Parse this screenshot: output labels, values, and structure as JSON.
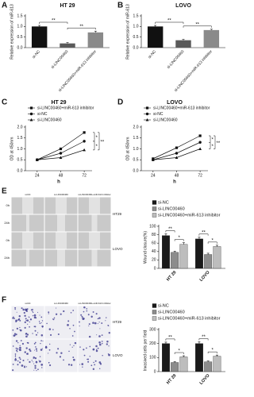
{
  "chart_data": [
    {
      "type": "bar",
      "panel": "A",
      "title": "HT 29",
      "y_label": "Relative expression of miR-613",
      "categories": [
        "si-NC",
        "si-LINC00460",
        "si-LINC00460+miR-613 inhibitor"
      ],
      "values": [
        1.0,
        0.2,
        0.72
      ],
      "errors": [
        0.05,
        0.04,
        0.06
      ],
      "colors": [
        "#111111",
        "#5a5a5a",
        "#8a8a8a"
      ],
      "ylim": [
        0,
        1.5
      ],
      "yticks": [
        {
          "value": 0,
          "label": "0.0"
        },
        0.5,
        {
          "value": 1,
          "label": "1.0"
        },
        1.5
      ],
      "annotations": [
        "**",
        "**"
      ]
    },
    {
      "type": "bar",
      "panel": "B",
      "title": "LOVO",
      "y_label": "Relative expression of miR-613",
      "categories": [
        "si-NC",
        "si-LINC00460",
        "si-LINC00460+miR-613 inhibitor"
      ],
      "values": [
        1.0,
        0.35,
        0.83
      ],
      "errors": [
        0.05,
        0.04,
        0.04
      ],
      "colors": [
        "#111111",
        "#5a5a5a",
        "#8a8a8a"
      ],
      "ylim": [
        0,
        1.5
      ],
      "yticks": [
        {
          "value": 0,
          "label": "0.0"
        },
        0.5,
        {
          "value": 1,
          "label": "1.0"
        },
        1.5
      ],
      "annotations": [
        "**",
        "**"
      ]
    },
    {
      "type": "line",
      "panel": "C",
      "title": "HT 29",
      "x_label": "h",
      "y_label": "OD at 450nm",
      "x": [
        24,
        48,
        72
      ],
      "xlim": [
        12,
        80
      ],
      "xticks": [
        24,
        48,
        72
      ],
      "ylim": [
        0,
        2
      ],
      "yticks": [
        {
          "value": 0,
          "label": "0.0"
        },
        0.5,
        {
          "value": 1,
          "label": "1.0"
        },
        1.5,
        {
          "value": 2,
          "label": "2.0"
        }
      ],
      "series": [
        {
          "name": "si-LINC00460+miR-613 inhibitor",
          "color": "#111111",
          "marker": "square",
          "values": [
            0.5,
            1.0,
            1.75
          ]
        },
        {
          "name": "si-NC",
          "color": "#111111",
          "marker": "circle",
          "values": [
            0.5,
            0.8,
            1.35
          ]
        },
        {
          "name": "si-LINC00460",
          "color": "#111111",
          "marker": "triangle",
          "values": [
            0.5,
            0.6,
            0.95
          ]
        }
      ],
      "annotations": [
        "*",
        "*",
        "**"
      ]
    },
    {
      "type": "line",
      "panel": "D",
      "title": "LOVO",
      "x_label": "h",
      "y_label": "OD at 450nm",
      "x": [
        24,
        48,
        72
      ],
      "xlim": [
        12,
        80
      ],
      "xticks": [
        24,
        48,
        72
      ],
      "ylim": [
        0,
        2
      ],
      "yticks": [
        {
          "value": 0,
          "label": "0.0"
        },
        0.5,
        {
          "value": 1,
          "label": "1.0"
        },
        1.5,
        {
          "value": 2,
          "label": "2.0"
        }
      ],
      "series": [
        {
          "name": "si-LINC00460+miR-613 inhibitor",
          "color": "#111111",
          "marker": "square",
          "values": [
            0.55,
            1.05,
            1.6
          ]
        },
        {
          "name": "si-NC",
          "color": "#111111",
          "marker": "circle",
          "values": [
            0.5,
            0.8,
            1.3
          ]
        },
        {
          "name": "si-LINC00460",
          "color": "#111111",
          "marker": "triangle",
          "values": [
            0.5,
            0.6,
            1.0
          ]
        }
      ],
      "annotations": [
        "*",
        "*",
        "**"
      ]
    },
    {
      "type": "grouped_bar",
      "panel": "E",
      "y_label": "Wound closure(%)",
      "categories": [
        "HT 29",
        "LOVO"
      ],
      "ylim": [
        0,
        100
      ],
      "yticks": [
        0,
        20,
        40,
        60,
        80,
        100
      ],
      "series": [
        {
          "name": "si-NC",
          "color": "#1a1a1a",
          "values": [
            78,
            70
          ],
          "errors": [
            4,
            4
          ]
        },
        {
          "name": "si-LINC00460",
          "color": "#8c8c8c",
          "values": [
            38,
            33
          ],
          "errors": [
            3,
            3
          ]
        },
        {
          "name": "si-LINC00460+miR-613 inhibitor",
          "color": "#bdbdbd",
          "values": [
            57,
            52
          ],
          "errors": [
            4,
            3
          ]
        }
      ],
      "annotations": [
        "**",
        "*",
        "**",
        "*"
      ],
      "images": {
        "columns": [
          "si-NC",
          "si-LINC00460",
          "si-LINC00460+miR-613 inhibitor"
        ],
        "rows": [
          "0h",
          "24h",
          "0h",
          "24h"
        ],
        "cell_lines": [
          "HT29",
          "LOVO"
        ]
      }
    },
    {
      "type": "grouped_bar",
      "panel": "F",
      "y_label": "Invasived cells per field",
      "categories": [
        "HT 29",
        "LOVO"
      ],
      "ylim": [
        0,
        300
      ],
      "yticks": [
        0,
        100,
        200,
        300
      ],
      "series": [
        {
          "name": "si-NC",
          "color": "#1a1a1a",
          "values": [
            200,
            200
          ],
          "errors": [
            10,
            12
          ]
        },
        {
          "name": "si-LINC00460",
          "color": "#8c8c8c",
          "values": [
            65,
            70
          ],
          "errors": [
            6,
            6
          ]
        },
        {
          "name": "si-LINC00460+miR-613 inhibitor",
          "color": "#bdbdbd",
          "values": [
            105,
            110
          ],
          "errors": [
            8,
            8
          ]
        }
      ],
      "annotations": [
        "**",
        "*",
        "**",
        "*"
      ],
      "images": {
        "columns": [
          "si-NC",
          "si-LINC00460",
          "si-LINC00460+miR-613 inhibitor"
        ],
        "cell_lines": [
          "HT29",
          "LOVO"
        ]
      }
    }
  ]
}
